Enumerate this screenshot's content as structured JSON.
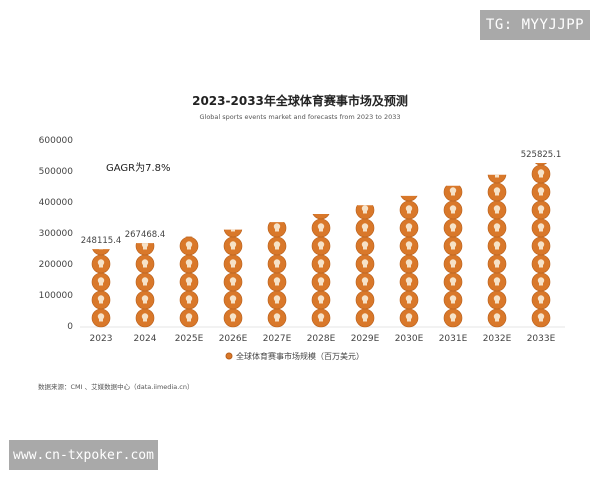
{
  "watermarks": {
    "top_right": "TG: MYYJJPP",
    "bottom_left": "www.cn-txpoker.com"
  },
  "source": "数据来源：CMI 、艾媒数据中心（data.iimedia.cn）",
  "chart_data": {
    "type": "bar",
    "title": "2023-2033年全球体育赛事市场及预测",
    "subtitle": "Global sports events market and forecasts from 2023 to 2033",
    "annotation": "GAGR为7.8%",
    "categories": [
      "2023",
      "2024",
      "2025E",
      "2026E",
      "2027E",
      "2028E",
      "2029E",
      "2030E",
      "2031E",
      "2032E",
      "2033E"
    ],
    "series": [
      {
        "name": "全球体育赛事市场规模（百万美元）",
        "values": [
          248115.4,
          267468.4,
          288331,
          310821,
          335065,
          361200,
          389374,
          419745,
          452485,
          487779,
          525825.1
        ]
      }
    ],
    "data_labels": {
      "0": "248115.4",
      "1": "267468.4",
      "10": "525825.1"
    },
    "yticks": [
      "0",
      "100000",
      "200000",
      "300000",
      "400000",
      "500000",
      "600000"
    ],
    "ylim": [
      0,
      600000
    ],
    "grid": false,
    "legend": "bottom",
    "bar_style": "stacked orange ball icons",
    "colors": {
      "bar": "#d9782a",
      "bar_dark": "#b85f1a",
      "icon": "#f6e2c8"
    }
  }
}
